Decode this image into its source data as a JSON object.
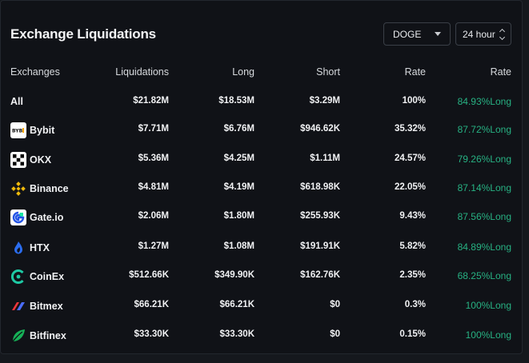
{
  "title": "Exchange Liquidations",
  "controls": {
    "coin": "DOGE",
    "timeframe": "24 hour"
  },
  "columns": {
    "exchange": "Exchanges",
    "liquidations": "Liquidations",
    "long": "Long",
    "short": "Short",
    "rate": "Rate",
    "rate2": "Rate"
  },
  "colors": {
    "accent_green": "#27b283",
    "background": "#101217"
  },
  "rows": [
    {
      "exchange": "All",
      "icon": "",
      "liquidations": "$21.82M",
      "long": "$18.53M",
      "short": "$3.29M",
      "rate": "100%",
      "long_rate": "84.93%Long"
    },
    {
      "exchange": "Bybit",
      "icon": "bybit-logo-icon",
      "liquidations": "$7.71M",
      "long": "$6.76M",
      "short": "$946.62K",
      "rate": "35.32%",
      "long_rate": "87.72%Long"
    },
    {
      "exchange": "OKX",
      "icon": "okx-logo-icon",
      "liquidations": "$5.36M",
      "long": "$4.25M",
      "short": "$1.11M",
      "rate": "24.57%",
      "long_rate": "79.26%Long"
    },
    {
      "exchange": "Binance",
      "icon": "binance-logo-icon",
      "liquidations": "$4.81M",
      "long": "$4.19M",
      "short": "$618.98K",
      "rate": "22.05%",
      "long_rate": "87.14%Long"
    },
    {
      "exchange": "Gate.io",
      "icon": "gateio-logo-icon",
      "liquidations": "$2.06M",
      "long": "$1.80M",
      "short": "$255.93K",
      "rate": "9.43%",
      "long_rate": "87.56%Long"
    },
    {
      "exchange": "HTX",
      "icon": "htx-logo-icon",
      "liquidations": "$1.27M",
      "long": "$1.08M",
      "short": "$191.91K",
      "rate": "5.82%",
      "long_rate": "84.89%Long"
    },
    {
      "exchange": "CoinEx",
      "icon": "coinex-logo-icon",
      "liquidations": "$512.66K",
      "long": "$349.90K",
      "short": "$162.76K",
      "rate": "2.35%",
      "long_rate": "68.25%Long"
    },
    {
      "exchange": "Bitmex",
      "icon": "bitmex-logo-icon",
      "liquidations": "$66.21K",
      "long": "$66.21K",
      "short": "$0",
      "rate": "0.3%",
      "long_rate": "100%Long"
    },
    {
      "exchange": "Bitfinex",
      "icon": "bitfinex-logo-icon",
      "liquidations": "$33.30K",
      "long": "$33.30K",
      "short": "$0",
      "rate": "0.15%",
      "long_rate": "100%Long"
    }
  ]
}
